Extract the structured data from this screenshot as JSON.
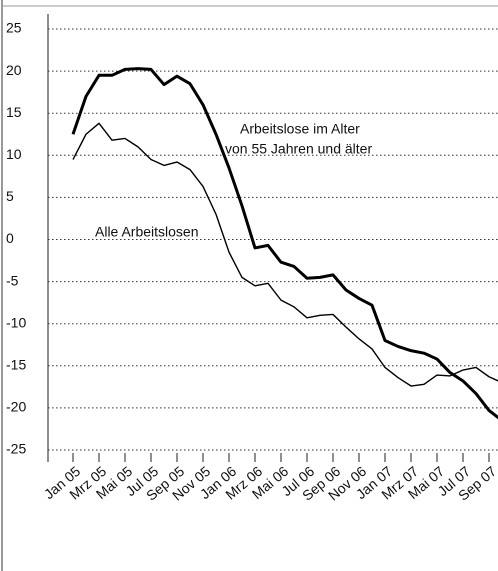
{
  "chart_data": {
    "type": "line",
    "categories": [
      "Jan 05",
      null,
      "Mrz 05",
      null,
      "Mai 05",
      null,
      "Jul 05",
      null,
      "Sep 05",
      null,
      "Nov 05",
      null,
      "Jan 06",
      null,
      "Mrz 06",
      null,
      "Mai 06",
      null,
      "Jul 06",
      null,
      "Sep 06",
      null,
      "Nov 06",
      null,
      "Jan 07",
      null,
      "Mrz 07",
      null,
      "Mai 07",
      null,
      "Jul 07",
      null,
      "Sep 07",
      null
    ],
    "series": [
      {
        "name": "Arbeitslose im Alter von 55 Jahren und älter",
        "color": "#000000",
        "width": 3,
        "values": [
          12.5,
          17,
          19.5,
          19.5,
          20.2,
          20.3,
          20.2,
          18.4,
          19.4,
          18.5,
          16,
          12.5,
          8.5,
          4,
          -1,
          -0.7,
          -2.7,
          -3.2,
          -4.6,
          -4.5,
          -4.2,
          -6,
          -7,
          -7.8,
          -12,
          -12.7,
          -13.2,
          -13.5,
          -14.2,
          -15.8,
          -16.8,
          -18.3,
          -20.3,
          -21.5
        ]
      },
      {
        "name": "Alle Arbeitslosen",
        "color": "#000000",
        "width": 1.4,
        "values": [
          9.5,
          12.5,
          13.8,
          11.8,
          12,
          11,
          9.5,
          8.8,
          9.2,
          8.3,
          6.3,
          3,
          -1.5,
          -4.5,
          -5.5,
          -5.2,
          -7.2,
          -8,
          -9.3,
          -9,
          -8.9,
          -10.4,
          -11.8,
          -13,
          -15.2,
          -16.4,
          -17.4,
          -17.2,
          -16.1,
          -16.2,
          -15.5,
          -15.2,
          -16.3,
          -17
        ]
      }
    ],
    "annotations": [
      "Arbeitslose im Alter",
      "von 55 Jahren und älter",
      "Alle Arbeitslosen"
    ],
    "ylim": [
      -25,
      25
    ],
    "yticks": [
      25,
      20,
      15,
      10,
      5,
      0,
      -5,
      -10,
      -15,
      -20,
      -25
    ],
    "grid": true
  }
}
